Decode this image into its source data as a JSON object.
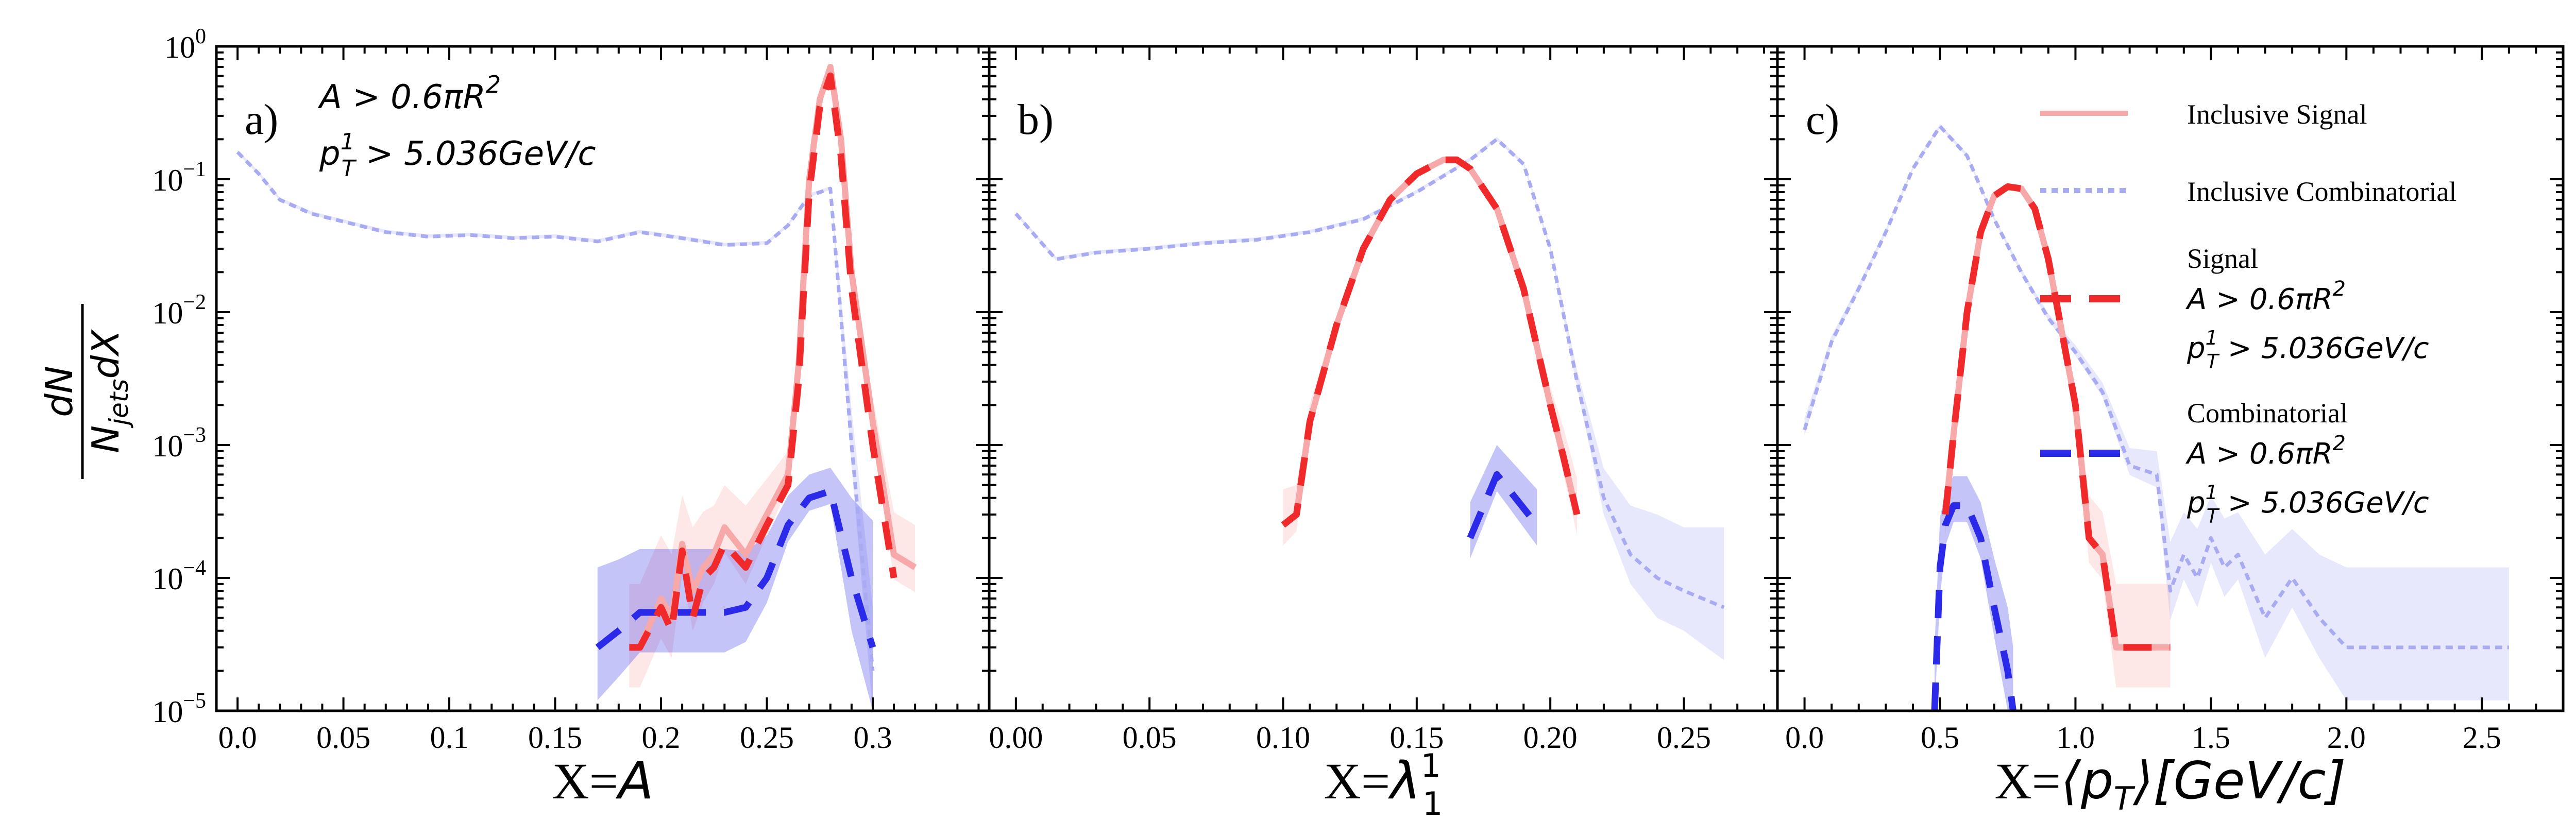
{
  "y_axis": {
    "numerator": "dN",
    "denominator_prefix": "N",
    "denominator_sub": "jets",
    "denominator_suffix": "dX",
    "tick_labels": [
      "10",
      "10",
      "10",
      "10",
      "10",
      "10"
    ],
    "tick_exponents": [
      "0",
      "−1",
      "−2",
      "−3",
      "−4",
      "−5"
    ]
  },
  "cuts": {
    "area_prefix": "A > 0.6πR",
    "area_power": "2",
    "pt_prefix": "p",
    "pt_sup": "1",
    "pt_sub": "T",
    "pt_suffix": " > 5.036GeV/c"
  },
  "legend": {
    "inclusive_signal": "Inclusive Signal",
    "inclusive_combinatorial": "Inclusive Combinatorial",
    "signal": "Signal",
    "combinatorial": "Combinatorial"
  },
  "colors": {
    "inclusive_signal": "#f7a8a8",
    "inclusive_combinatorial": "#a9abf2",
    "signal": "#f02a2a",
    "combinatorial": "#2a2ae8"
  },
  "chart_data": [
    {
      "type": "line",
      "panel_label": "a)",
      "xlabel_prefix": "X=",
      "xlabel_var": "A",
      "xlabel_sup": "",
      "xlabel_sub": "",
      "xlabel_unit": "",
      "yscale": "log",
      "xlim": [
        -0.01,
        0.355
      ],
      "ylim": [
        1e-05,
        1
      ],
      "xticks": [
        0.0,
        0.05,
        0.1,
        0.15,
        0.2,
        0.25,
        0.3
      ],
      "xtick_labels": [
        "0.0",
        "0.05",
        "0.1",
        "0.15",
        "0.2",
        "0.25",
        "0.3"
      ],
      "series": [
        {
          "name": "Inclusive Combinatorial",
          "style": "dotted",
          "x": [
            0.0,
            0.01,
            0.02,
            0.035,
            0.05,
            0.07,
            0.09,
            0.11,
            0.13,
            0.15,
            0.17,
            0.19,
            0.21,
            0.23,
            0.25,
            0.26,
            0.27,
            0.28,
            0.29,
            0.3
          ],
          "y": [
            0.16,
            0.11,
            0.07,
            0.055,
            0.048,
            0.04,
            0.037,
            0.038,
            0.036,
            0.037,
            0.034,
            0.04,
            0.036,
            0.032,
            0.033,
            0.045,
            0.075,
            0.085,
            0.001,
            2e-05
          ],
          "band": [
            0.02,
            0.02,
            0.02,
            0.02,
            0.02,
            0.02,
            0.02,
            0.02,
            0.02,
            0.02,
            0.02,
            0.02,
            0.02,
            0.02,
            0.02,
            0.02,
            0.02,
            0.02,
            0.3,
            0.5
          ]
        },
        {
          "name": "Inclusive Signal",
          "style": "solid",
          "x": [
            0.185,
            0.19,
            0.2,
            0.205,
            0.21,
            0.215,
            0.22,
            0.225,
            0.23,
            0.24,
            0.25,
            0.26,
            0.265,
            0.27,
            0.275,
            0.28,
            0.285,
            0.29,
            0.3,
            0.31,
            0.32
          ],
          "y": [
            3e-05,
            3e-05,
            7e-05,
            5e-05,
            0.00018,
            8e-05,
            0.00012,
            0.00015,
            0.00024,
            0.00015,
            0.0003,
            0.0006,
            0.004,
            0.1,
            0.4,
            0.7,
            0.2,
            0.02,
            0.0015,
            0.00015,
            0.00012
          ],
          "band": [
            0.5,
            0.5,
            0.5,
            0.5,
            0.4,
            0.5,
            0.45,
            0.4,
            0.35,
            0.4,
            0.3,
            0.2,
            0.1,
            0.05,
            0.03,
            0.03,
            0.05,
            0.1,
            0.2,
            0.35,
            0.35
          ]
        },
        {
          "name": "Signal",
          "style": "dashed",
          "x": [
            0.185,
            0.19,
            0.2,
            0.205,
            0.21,
            0.215,
            0.22,
            0.225,
            0.23,
            0.24,
            0.25,
            0.26,
            0.265,
            0.27,
            0.275,
            0.28,
            0.285,
            0.29,
            0.3,
            0.31
          ],
          "y": [
            3e-05,
            3e-05,
            6e-05,
            4e-05,
            0.00016,
            5e-05,
            0.0001,
            0.00012,
            0.00018,
            0.00012,
            0.00025,
            0.0005,
            0.003,
            0.08,
            0.35,
            0.6,
            0.15,
            0.015,
            0.001,
            0.0001
          ],
          "band": null
        },
        {
          "name": "Combinatorial",
          "style": "dashed",
          "x": [
            0.17,
            0.18,
            0.19,
            0.2,
            0.21,
            0.22,
            0.23,
            0.24,
            0.25,
            0.26,
            0.27,
            0.28,
            0.29,
            0.3
          ],
          "y": [
            3e-05,
            4e-05,
            5.5e-05,
            5.5e-05,
            5.5e-05,
            5.5e-05,
            5.5e-05,
            6e-05,
            0.0001,
            0.00025,
            0.0004,
            0.00045,
            0.0001,
            3e-05
          ],
          "band": [
            0.6,
            0.55,
            0.5,
            0.5,
            0.5,
            0.5,
            0.5,
            0.45,
            0.35,
            0.25,
            0.2,
            0.2,
            0.6,
            0.8
          ]
        }
      ]
    },
    {
      "type": "line",
      "panel_label": "b)",
      "xlabel_prefix": "X=",
      "xlabel_var": "λ",
      "xlabel_sup": "1",
      "xlabel_sub": "1",
      "xlabel_unit": "",
      "yscale": "log",
      "xlim": [
        -0.01,
        0.285
      ],
      "ylim": [
        1e-05,
        1
      ],
      "xticks": [
        0.0,
        0.05,
        0.1,
        0.15,
        0.2,
        0.25
      ],
      "xtick_labels": [
        "0.00",
        "0.05",
        "0.10",
        "0.15",
        "0.20",
        "0.25"
      ],
      "series": [
        {
          "name": "Inclusive Combinatorial",
          "style": "dotted",
          "x": [
            0.0,
            0.015,
            0.03,
            0.05,
            0.07,
            0.09,
            0.11,
            0.13,
            0.15,
            0.17,
            0.18,
            0.19,
            0.2,
            0.21,
            0.22,
            0.23,
            0.24,
            0.25,
            0.265
          ],
          "y": [
            0.055,
            0.025,
            0.028,
            0.03,
            0.033,
            0.035,
            0.04,
            0.05,
            0.08,
            0.14,
            0.2,
            0.13,
            0.03,
            0.003,
            0.0004,
            0.00015,
            0.0001,
            8e-05,
            6e-05
          ],
          "band": [
            0.02,
            0.02,
            0.02,
            0.02,
            0.02,
            0.02,
            0.02,
            0.02,
            0.02,
            0.02,
            0.02,
            0.02,
            0.03,
            0.1,
            0.25,
            0.4,
            0.5,
            0.5,
            0.6
          ]
        },
        {
          "name": "Inclusive Signal",
          "style": "solid",
          "x": [
            0.1,
            0.105,
            0.11,
            0.12,
            0.13,
            0.14,
            0.15,
            0.16,
            0.165,
            0.17,
            0.18,
            0.19,
            0.2,
            0.205,
            0.21
          ],
          "y": [
            0.00025,
            0.0003,
            0.0015,
            0.008,
            0.03,
            0.07,
            0.11,
            0.14,
            0.14,
            0.12,
            0.06,
            0.015,
            0.002,
            0.0008,
            0.0003
          ],
          "band": [
            0.3,
            0.25,
            0.15,
            0.08,
            0.05,
            0.04,
            0.03,
            0.03,
            0.03,
            0.03,
            0.05,
            0.08,
            0.15,
            0.25,
            0.3
          ]
        },
        {
          "name": "Signal",
          "style": "dashed",
          "x": [
            0.1,
            0.105,
            0.11,
            0.12,
            0.13,
            0.14,
            0.15,
            0.16,
            0.165,
            0.17,
            0.18,
            0.19,
            0.2,
            0.205,
            0.21
          ],
          "y": [
            0.00025,
            0.0003,
            0.0015,
            0.008,
            0.03,
            0.07,
            0.11,
            0.14,
            0.14,
            0.12,
            0.06,
            0.015,
            0.002,
            0.0008,
            0.0003
          ],
          "band": null
        },
        {
          "name": "Combinatorial",
          "style": "dashed",
          "x": [
            0.17,
            0.18,
            0.195
          ],
          "y": [
            0.0002,
            0.0006,
            0.00025
          ],
          "band": [
            0.3,
            0.25,
            0.3
          ]
        }
      ]
    },
    {
      "type": "line",
      "panel_label": "c)",
      "xlabel_prefix": "X=",
      "xlabel_var": "⟨p",
      "xlabel_sup": "",
      "xlabel_sub": "T",
      "xlabel_unit": "⟩[GeV/c]",
      "yscale": "log",
      "xlim": [
        -0.1,
        2.8
      ],
      "ylim": [
        1e-05,
        1
      ],
      "xticks": [
        0.0,
        0.5,
        1.0,
        1.5,
        2.0,
        2.5
      ],
      "xtick_labels": [
        "0.0",
        "0.5",
        "1.0",
        "1.5",
        "2.0",
        "2.5"
      ],
      "series": [
        {
          "name": "Inclusive Combinatorial",
          "style": "dotted",
          "x": [
            0.0,
            0.1,
            0.2,
            0.3,
            0.4,
            0.5,
            0.6,
            0.7,
            0.8,
            0.9,
            1.0,
            1.1,
            1.2,
            1.3,
            1.35,
            1.4,
            1.45,
            1.5,
            1.55,
            1.6,
            1.7,
            1.8,
            1.9,
            2.0,
            2.2,
            2.4,
            2.6
          ],
          "y": [
            0.0013,
            0.006,
            0.015,
            0.04,
            0.12,
            0.25,
            0.15,
            0.05,
            0.02,
            0.009,
            0.005,
            0.0025,
            0.0007,
            0.0006,
            8e-05,
            0.00015,
            0.0001,
            0.0002,
            0.00012,
            0.00015,
            5e-05,
            0.0001,
            5e-05,
            3e-05,
            3e-05,
            3e-05,
            3e-05
          ],
          "band": [
            0.1,
            0.05,
            0.04,
            0.03,
            0.02,
            0.02,
            0.02,
            0.02,
            0.03,
            0.04,
            0.06,
            0.08,
            0.15,
            0.2,
            0.4,
            0.35,
            0.4,
            0.35,
            0.4,
            0.35,
            0.5,
            0.4,
            0.5,
            0.6,
            0.6,
            0.6,
            0.6
          ]
        },
        {
          "name": "Inclusive Signal",
          "style": "solid",
          "x": [
            0.52,
            0.55,
            0.6,
            0.65,
            0.7,
            0.75,
            0.8,
            0.85,
            0.9,
            1.0,
            1.05,
            1.1,
            1.15,
            1.2,
            1.25,
            1.35
          ],
          "y": [
            0.0003,
            0.0012,
            0.01,
            0.04,
            0.075,
            0.088,
            0.085,
            0.06,
            0.025,
            0.002,
            0.0002,
            0.00015,
            3e-05,
            3e-05,
            3e-05,
            3e-05
          ],
          "band": [
            0.3,
            0.2,
            0.1,
            0.05,
            0.04,
            0.03,
            0.03,
            0.04,
            0.06,
            0.15,
            0.35,
            0.35,
            0.5,
            0.5,
            0.5,
            0.5
          ]
        },
        {
          "name": "Signal",
          "style": "dashed",
          "x": [
            0.52,
            0.55,
            0.6,
            0.65,
            0.7,
            0.75,
            0.8,
            0.85,
            0.9,
            1.0,
            1.05,
            1.1,
            1.15,
            1.2,
            1.25,
            1.35
          ],
          "y": [
            0.0003,
            0.0012,
            0.01,
            0.04,
            0.075,
            0.088,
            0.085,
            0.06,
            0.025,
            0.002,
            0.0002,
            0.00015,
            3e-05,
            3e-05,
            3e-05,
            3e-05
          ],
          "band": null
        },
        {
          "name": "Combinatorial",
          "style": "dashed",
          "x": [
            0.48,
            0.5,
            0.52,
            0.55,
            0.6,
            0.65,
            0.7,
            0.75,
            0.77
          ],
          "y": [
            1e-05,
            0.00012,
            0.00025,
            0.00035,
            0.00035,
            0.0002,
            6e-05,
            2e-05,
            1e-05
          ],
          "band": [
            0.5,
            0.4,
            0.3,
            0.25,
            0.25,
            0.3,
            0.4,
            0.5,
            0.5
          ]
        }
      ]
    }
  ]
}
